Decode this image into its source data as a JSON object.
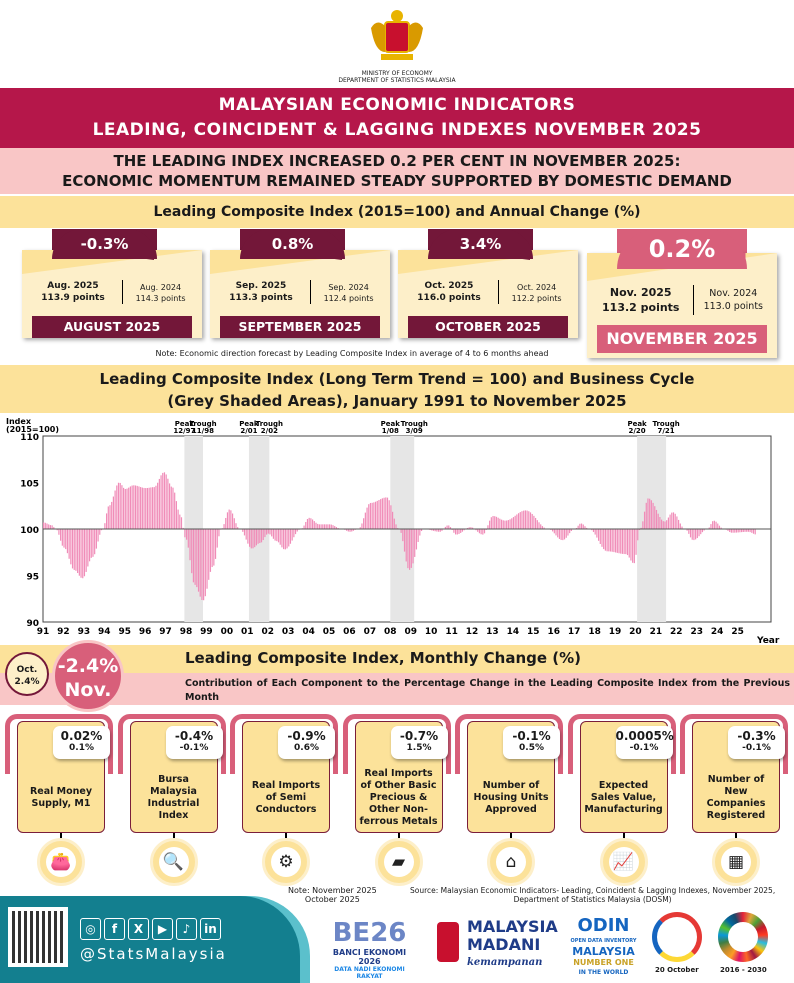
{
  "header": {
    "ministry": "MINISTRY OF ECONOMY",
    "department": "DEPARTMENT OF STATISTICS MALAYSIA",
    "title_line1": "MALAYSIAN ECONOMIC INDICATORS",
    "title_line2": "LEADING, COINCIDENT & LAGGING INDEXES NOVEMBER 2025",
    "headline_line1": "THE LEADING INDEX INCREASED 0.2 PER CENT IN NOVEMBER 2025:",
    "headline_line2": "ECONOMIC MOMENTUM REMAINED STEADY SUPPORTED BY DOMESTIC DEMAND"
  },
  "annual": {
    "title": "Leading Composite Index (2015=100) and Annual Change (%)",
    "cards": [
      {
        "change": "-0.3%",
        "cur_label": "Aug. 2025",
        "cur_points": "113.9 points",
        "prev_label": "Aug. 2024",
        "prev_points": "114.3 points",
        "month": "AUGUST 2025"
      },
      {
        "change": "0.8%",
        "cur_label": "Sep. 2025",
        "cur_points": "113.3 points",
        "prev_label": "Sep. 2024",
        "prev_points": "112.4 points",
        "month": "SEPTEMBER 2025"
      },
      {
        "change": "3.4%",
        "cur_label": "Oct. 2025",
        "cur_points": "116.0 points",
        "prev_label": "Oct. 2024",
        "prev_points": "112.2 points",
        "month": "OCTOBER 2025"
      },
      {
        "change": "0.2%",
        "cur_label": "Nov. 2025",
        "cur_points": "113.2 points",
        "prev_label": "Nov. 2024",
        "prev_points": "113.0 points",
        "month": "NOVEMBER 2025"
      }
    ],
    "note": "Note: Economic direction forecast by Leading Composite Index in average of 4 to 6 months ahead"
  },
  "colors": {
    "maroon": "#731739",
    "rose": "#D85F7A",
    "crimson": "#B5174A",
    "cream": "#FDEFC9",
    "yellow": "#FCE29A",
    "pink": "#F9C6C6",
    "bar": "#F08CB8",
    "teal": "#137F8F"
  },
  "chart_data": {
    "type": "bar",
    "title_line1": "Leading Composite Index (Long Term Trend = 100) and Business Cycle",
    "title_line2": "(Grey Shaded Areas), January 1991 to November 2025",
    "ylabel_line1": "Index",
    "ylabel_line2": "(2015=100)",
    "xlabel": "Year",
    "ylim": [
      90,
      110
    ],
    "baseline": 100,
    "yticks": [
      "110",
      "105",
      "100",
      "95",
      "90"
    ],
    "xticks": [
      "91",
      "92",
      "93",
      "94",
      "95",
      "96",
      "97",
      "98",
      "99",
      "00",
      "01",
      "02",
      "03",
      "04",
      "05",
      "06",
      "07",
      "08",
      "09",
      "10",
      "11",
      "12",
      "13",
      "14",
      "15",
      "16",
      "17",
      "18",
      "19",
      "20",
      "21",
      "22",
      "23",
      "24",
      "25"
    ],
    "shaded": [
      {
        "peak": "12/97",
        "trough": "11/98",
        "from": 1997.92,
        "to": 1998.83
      },
      {
        "peak": "2/01",
        "trough": "2/02",
        "from": 2001.08,
        "to": 2002.08
      },
      {
        "peak": "1/08",
        "trough": "3/09",
        "from": 2008.0,
        "to": 2009.17
      },
      {
        "peak": "2/20",
        "trough": "7/21",
        "from": 2020.08,
        "to": 2021.5
      }
    ],
    "peak_label": "Peak",
    "trough_label": "Trough",
    "points": [
      [
        1991.0,
        100.7
      ],
      [
        1991.4,
        100.4
      ],
      [
        1991.6,
        100
      ],
      [
        1992.0,
        98
      ],
      [
        1992.5,
        95.6
      ],
      [
        1992.9,
        94.7
      ],
      [
        1993.4,
        97
      ],
      [
        1993.9,
        100
      ],
      [
        1994.2,
        102.5
      ],
      [
        1994.7,
        105
      ],
      [
        1995.0,
        104.3
      ],
      [
        1995.4,
        104.7
      ],
      [
        1996.0,
        104.4
      ],
      [
        1996.4,
        104.5
      ],
      [
        1996.9,
        106.1
      ],
      [
        1997.3,
        104.5
      ],
      [
        1997.7,
        101.5
      ],
      [
        1997.95,
        99
      ],
      [
        1998.4,
        94
      ],
      [
        1998.8,
        92.3
      ],
      [
        1999.3,
        96
      ],
      [
        1999.7,
        100
      ],
      [
        2000.1,
        102.1
      ],
      [
        2000.6,
        100
      ],
      [
        2001.2,
        97.9
      ],
      [
        2001.6,
        98.5
      ],
      [
        2002.0,
        99.5
      ],
      [
        2002.4,
        98.7
      ],
      [
        2002.8,
        97.8
      ],
      [
        2003.6,
        100
      ],
      [
        2004.0,
        101.2
      ],
      [
        2004.5,
        100.5
      ],
      [
        2005.0,
        100.5
      ],
      [
        2005.6,
        100
      ],
      [
        2006.0,
        99.7
      ],
      [
        2006.4,
        100
      ],
      [
        2007.0,
        102.8
      ],
      [
        2007.8,
        103.4
      ],
      [
        2008.4,
        100
      ],
      [
        2008.9,
        95.6
      ],
      [
        2009.6,
        100
      ],
      [
        2010.4,
        99.7
      ],
      [
        2010.8,
        100.4
      ],
      [
        2011.2,
        99.4
      ],
      [
        2011.9,
        100.2
      ],
      [
        2012.5,
        99.4
      ],
      [
        2013.0,
        101.4
      ],
      [
        2013.6,
        100.9
      ],
      [
        2014.6,
        102
      ],
      [
        2015.7,
        100
      ],
      [
        2016.4,
        98.8
      ],
      [
        2017.0,
        100
      ],
      [
        2017.3,
        100.6
      ],
      [
        2017.7,
        100
      ],
      [
        2018.6,
        97.6
      ],
      [
        2019.5,
        97.3
      ],
      [
        2019.9,
        96.3
      ],
      [
        2020.2,
        100
      ],
      [
        2020.6,
        103.3
      ],
      [
        2021.4,
        100.8
      ],
      [
        2021.8,
        101.8
      ],
      [
        2022.4,
        100
      ],
      [
        2022.8,
        98.8
      ],
      [
        2023.5,
        100
      ],
      [
        2023.8,
        100.9
      ],
      [
        2024.3,
        100
      ],
      [
        2024.7,
        99.6
      ],
      [
        2025.5,
        99.7
      ],
      [
        2025.9,
        99.4
      ]
    ]
  },
  "monthly": {
    "title": "Leading Composite Index, Monthly Change (%)",
    "subtitle": "Contribution of Each Component to the Percentage Change in the Leading Composite Index from the Previous Month",
    "prev_label": "Oct.",
    "prev_value": "2.4%",
    "cur_value": "-2.4%",
    "cur_label": "Nov.",
    "components": [
      {
        "nov": "0.02%",
        "oct": "0.1%",
        "name": "Real Money Supply, M1",
        "icon": "wallet-icon",
        "glyph": "👛"
      },
      {
        "nov": "-0.4%",
        "oct": "-0.1%",
        "name": "Bursa Malaysia Industrial Index",
        "icon": "chart-magnifier-icon",
        "glyph": "🔍"
      },
      {
        "nov": "-0.9%",
        "oct": "0.6%",
        "name": "Real Imports of Semi Conductors",
        "icon": "chip-icon",
        "glyph": "⚙"
      },
      {
        "nov": "-0.7%",
        "oct": "1.5%",
        "name": "Real Imports of Other Basic Precious & Other Non-ferrous Metals",
        "icon": "metal-bar-icon",
        "glyph": "▰"
      },
      {
        "nov": "-0.1%",
        "oct": "0.5%",
        "name": "Number of Housing Units Approved",
        "icon": "house-icon",
        "glyph": "⌂"
      },
      {
        "nov": "0.0005%",
        "oct": "-0.1%",
        "name": "Expected Sales Value, Manufacturing",
        "icon": "presentation-icon",
        "glyph": "📈"
      },
      {
        "nov": "-0.3%",
        "oct": "-0.1%",
        "name": "Number of New Companies Registered",
        "icon": "buildings-icon",
        "glyph": "▦"
      }
    ],
    "note_line1": "Note: November 2025",
    "note_line2": "October 2025",
    "source_line1": "Source: Malaysian Economic Indicators- Leading, Coincident & Lagging Indexes, November 2025,",
    "source_line2": "Department of Statistics Malaysia (DOSM)"
  },
  "footer": {
    "handle": "@StatsMalaysia",
    "social": [
      "◎",
      "f",
      "X",
      "▶",
      "♪",
      "in"
    ],
    "logos": {
      "banci_big": "BE26",
      "banci": "BANCI EKONOMI 2026",
      "banci_sub": "DATA NADI EKONOMI RAKYAT",
      "madani1": "MALAYSIA",
      "madani2": "MADANI",
      "madani3": "kemampanan",
      "odin1": "ODIN",
      "odin2": "OPEN DATA INVENTORY",
      "odin3": "MALAYSIA",
      "odin4": "NUMBER ONE",
      "odin5": "IN THE WORLD",
      "day": "20 October",
      "sdg": "2016 - 2030"
    }
  }
}
